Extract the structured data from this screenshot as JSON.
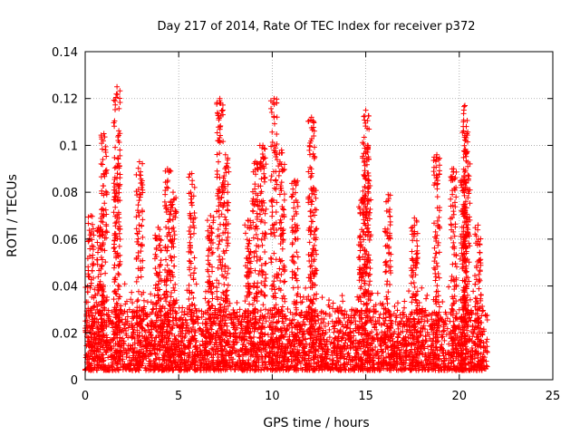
{
  "chart_data": {
    "type": "scatter",
    "title": "Day 217 of 2014, Rate Of TEC Index for receiver p372",
    "xlabel": "GPS time / hours",
    "ylabel": "ROTI / TECUs",
    "xlim": [
      0,
      25
    ],
    "ylim": [
      0,
      0.14
    ],
    "xticks": [
      0,
      5,
      10,
      15,
      20,
      25
    ],
    "yticks": [
      0,
      0.02,
      0.04,
      0.06,
      0.08,
      0.1,
      0.12,
      0.14
    ],
    "xtick_labels": [
      "0",
      "5",
      "10",
      "15",
      "20",
      "25"
    ],
    "ytick_labels": [
      "0",
      "0.02",
      "0.04",
      "0.06",
      "0.08",
      "0.1",
      "0.12",
      "0.14"
    ],
    "grid": true,
    "marker": "+",
    "color": "#ff0000",
    "series": [
      {
        "name": "ROTI",
        "x_range": [
          0,
          21.5
        ],
        "baseline_range": [
          0.004,
          0.03
        ],
        "peaks": [
          {
            "x": 0.3,
            "y": 0.07
          },
          {
            "x": 0.8,
            "y": 0.065
          },
          {
            "x": 1.0,
            "y": 0.105
          },
          {
            "x": 1.7,
            "y": 0.125
          },
          {
            "x": 1.7,
            "y": 0.086
          },
          {
            "x": 2.9,
            "y": 0.093
          },
          {
            "x": 3.9,
            "y": 0.065
          },
          {
            "x": 4.4,
            "y": 0.09
          },
          {
            "x": 4.7,
            "y": 0.08
          },
          {
            "x": 5.7,
            "y": 0.088
          },
          {
            "x": 6.7,
            "y": 0.07
          },
          {
            "x": 7.2,
            "y": 0.12
          },
          {
            "x": 7.5,
            "y": 0.096
          },
          {
            "x": 8.7,
            "y": 0.068
          },
          {
            "x": 9.1,
            "y": 0.093
          },
          {
            "x": 9.5,
            "y": 0.1
          },
          {
            "x": 10.1,
            "y": 0.12
          },
          {
            "x": 10.5,
            "y": 0.098
          },
          {
            "x": 11.2,
            "y": 0.085
          },
          {
            "x": 12.1,
            "y": 0.112
          },
          {
            "x": 12.2,
            "y": 0.082
          },
          {
            "x": 14.8,
            "y": 0.077
          },
          {
            "x": 15.0,
            "y": 0.115
          },
          {
            "x": 15.1,
            "y": 0.1
          },
          {
            "x": 16.2,
            "y": 0.079
          },
          {
            "x": 17.6,
            "y": 0.069
          },
          {
            "x": 18.8,
            "y": 0.096
          },
          {
            "x": 19.7,
            "y": 0.09
          },
          {
            "x": 20.2,
            "y": 0.085
          },
          {
            "x": 20.3,
            "y": 0.117
          },
          {
            "x": 20.4,
            "y": 0.105
          },
          {
            "x": 21.0,
            "y": 0.066
          }
        ]
      }
    ]
  }
}
